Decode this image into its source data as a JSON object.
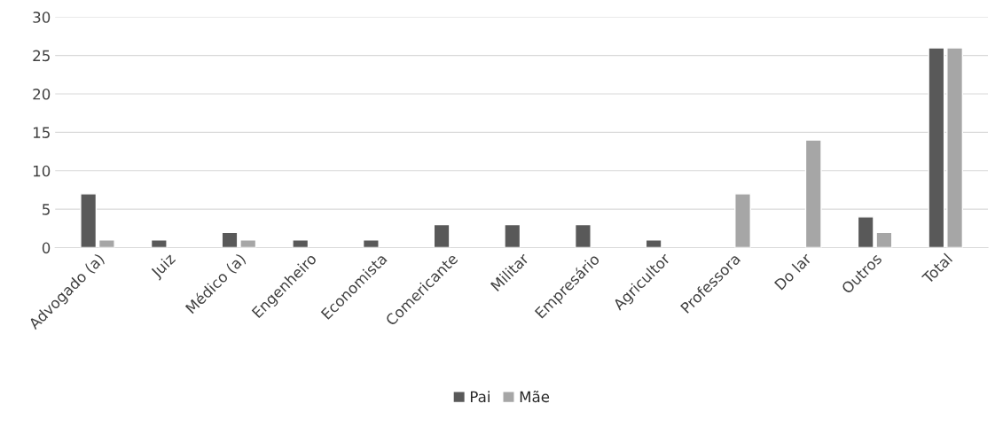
{
  "chart_data": {
    "type": "bar",
    "categories": [
      "Advogado (a)",
      "Juiz",
      "Médico (a)",
      "Engenheiro",
      "Economista",
      "Comericante",
      "Militar",
      "Empresário",
      "Agricultor",
      "Professora",
      "Do lar",
      "Outros",
      "Total"
    ],
    "series": [
      {
        "name": "Pai",
        "color": "#595959",
        "values": [
          7,
          1,
          2,
          1,
          1,
          3,
          3,
          3,
          1,
          null,
          null,
          4,
          26
        ]
      },
      {
        "name": "Mãe",
        "color": "#a6a6a6",
        "values": [
          1,
          null,
          1,
          null,
          null,
          null,
          null,
          null,
          null,
          7,
          14,
          2,
          26
        ]
      }
    ],
    "ylim": [
      0,
      30
    ],
    "yticks": [
      0,
      5,
      10,
      15,
      20,
      25,
      30
    ],
    "grid": "y",
    "legend": "bottom"
  }
}
